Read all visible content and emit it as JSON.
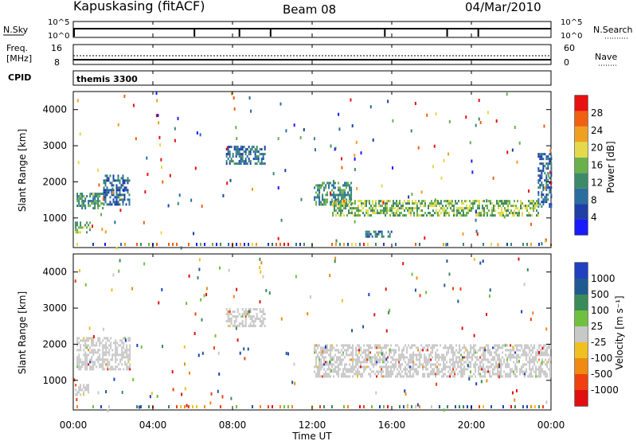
{
  "header": {
    "title": "Kapuskasing (fitACF)",
    "beam": "Beam 08",
    "date": "04/Mar/2010"
  },
  "noise_panel": {
    "label_left": "N.Sky",
    "label_right": "N.Search",
    "top_tick": "10^5",
    "bottom_tick": "10^0"
  },
  "freq_panel": {
    "label_line1": "Freq.",
    "label_line2": "[MHz]",
    "left_ticks": [
      "16",
      "8"
    ],
    "right_label": "Nave",
    "right_ticks": [
      "60",
      "0"
    ]
  },
  "cpid": {
    "label": "CPID",
    "value": "themis 3300"
  },
  "time_axis": {
    "label": "Time UT",
    "ticks": [
      "00:00",
      "04:00",
      "08:00",
      "12:00",
      "16:00",
      "20:00",
      "00:00"
    ]
  },
  "colors": {
    "power_scale": [
      "#1a1aff",
      "#1e3fa6",
      "#2a6ea0",
      "#3d8a6a",
      "#6ab04c",
      "#e4d94a",
      "#f0a020",
      "#f06010",
      "#e81010"
    ],
    "velocity_scale": [
      "#2040c0",
      "#205a90",
      "#3a8a5a",
      "#70c040",
      "#c8c8c8",
      "#f0c020",
      "#f08a10",
      "#f04010",
      "#e01010"
    ]
  },
  "chart_data": [
    {
      "type": "heatmap",
      "name": "power",
      "xlabel": "",
      "ylabel": "Slant Range [km]",
      "y_ticks": [
        "1000",
        "2000",
        "3000",
        "4000"
      ],
      "ylim": [
        180,
        4500
      ],
      "xlim": [
        "00:00",
        "00:00"
      ],
      "colorbar_label": "Power [dB]",
      "colorbar_ticks": [
        "4",
        "8",
        "12",
        "16",
        "20",
        "24",
        "28"
      ],
      "colorbar_range": [
        0,
        32
      ],
      "bands": [
        {
          "start": "00:10",
          "end": "01:30",
          "range_low": 1300,
          "range_high": 1700,
          "level": 10
        },
        {
          "start": "01:30",
          "end": "02:50",
          "range_low": 1400,
          "range_high": 2200,
          "level": 8
        },
        {
          "start": "00:05",
          "end": "00:50",
          "range_low": 600,
          "range_high": 900,
          "level": 14
        },
        {
          "start": "07:40",
          "end": "09:40",
          "range_low": 2500,
          "range_high": 3000,
          "level": 6
        },
        {
          "start": "12:05",
          "end": "14:00",
          "range_low": 1400,
          "range_high": 2000,
          "level": 10
        },
        {
          "start": "13:00",
          "end": "23:20",
          "range_low": 1100,
          "range_high": 1500,
          "level": 16
        },
        {
          "start": "23:20",
          "end": "23:59",
          "range_low": 1300,
          "range_high": 2800,
          "level": 6
        },
        {
          "start": "14:40",
          "end": "16:00",
          "range_low": 500,
          "range_high": 650,
          "level": 6
        }
      ]
    },
    {
      "type": "heatmap",
      "name": "velocity",
      "xlabel": "Time UT",
      "ylabel": "Slant Range [km]",
      "y_ticks": [
        "1000",
        "2000",
        "3000",
        "4000"
      ],
      "ylim": [
        180,
        4500
      ],
      "xlim": [
        "00:00",
        "00:00"
      ],
      "colorbar_label": "Velocity [m s⁻¹]",
      "colorbar_ticks": [
        "1000",
        "500",
        "100",
        "25",
        "-25",
        "-100",
        "-500",
        "-1000"
      ],
      "bands": [
        {
          "start": "00:10",
          "end": "02:50",
          "range_low": 1300,
          "range_high": 2200,
          "level": 0
        },
        {
          "start": "00:05",
          "end": "00:50",
          "range_low": 600,
          "range_high": 900,
          "level": 0
        },
        {
          "start": "07:40",
          "end": "09:40",
          "range_low": 2500,
          "range_high": 3000,
          "level": 0
        },
        {
          "start": "12:05",
          "end": "23:59",
          "range_low": 1100,
          "range_high": 2000,
          "level": 0
        }
      ]
    }
  ]
}
